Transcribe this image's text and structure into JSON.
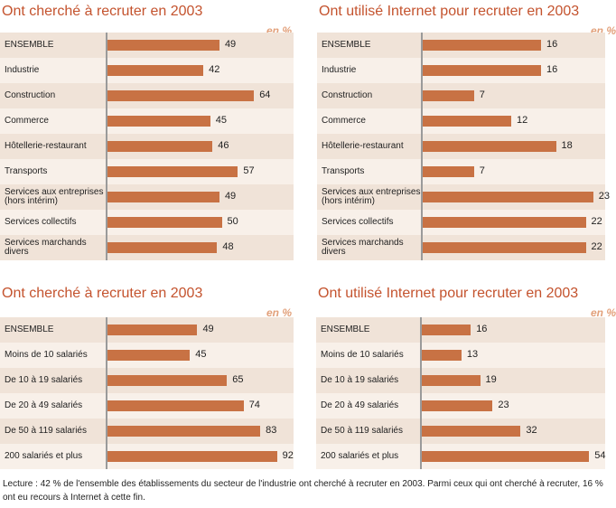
{
  "chart_data": [
    {
      "type": "bar",
      "orientation": "horizontal",
      "title": "Ont cherché à recruter en 2003",
      "unit_label": "en %",
      "categories": [
        "ENSEMBLE",
        "Industrie",
        "Construction",
        "Commerce",
        "Hôtellerie-restaurant",
        "Transports",
        "Services aux entreprises (hors intérim)",
        "Services collectifs",
        "Services marchands divers"
      ],
      "values": [
        49,
        42,
        64,
        45,
        46,
        57,
        49,
        50,
        48
      ],
      "bar_color": "#c87244"
    },
    {
      "type": "bar",
      "orientation": "horizontal",
      "title": "Ont utilisé Internet pour recruter en 2003",
      "unit_label": "en %",
      "categories": [
        "ENSEMBLE",
        "Industrie",
        "Construction",
        "Commerce",
        "Hôtellerie-restaurant",
        "Transports",
        "Services aux entreprises (hors intérim)",
        "Services collectifs",
        "Services marchands divers"
      ],
      "values": [
        16,
        16,
        7,
        12,
        18,
        7,
        23,
        22,
        22
      ],
      "bar_color": "#c87244"
    },
    {
      "type": "bar",
      "orientation": "horizontal",
      "title": "Ont cherché à recruter en 2003",
      "unit_label": "en %",
      "categories": [
        "ENSEMBLE",
        "Moins de 10 salariés",
        "De 10 à 19 salariés",
        "De 20 à 49 salariés",
        "De 50 à 119 salariés",
        "200 salariés et plus"
      ],
      "values": [
        49,
        45,
        65,
        74,
        83,
        92
      ],
      "bar_color": "#c87244"
    },
    {
      "type": "bar",
      "orientation": "horizontal",
      "title": "Ont utilisé Internet pour recruter en 2003",
      "unit_label": "en %",
      "categories": [
        "ENSEMBLE",
        "Moins de 10 salariés",
        "De 10 à 19 salariés",
        "De 20 à 49 salariés",
        "De 50 à 119 salariés",
        "200 salariés et plus"
      ],
      "values": [
        16,
        13,
        19,
        23,
        32,
        54
      ],
      "bar_color": "#c87244"
    }
  ],
  "note": "Lecture : 42 % de l'ensemble des établissements du secteur de l'industrie ont cherché à recruter en 2003. Parmi ceux qui ont cherché à recruter, 16 % ont eu recours à Internet à cette fin."
}
